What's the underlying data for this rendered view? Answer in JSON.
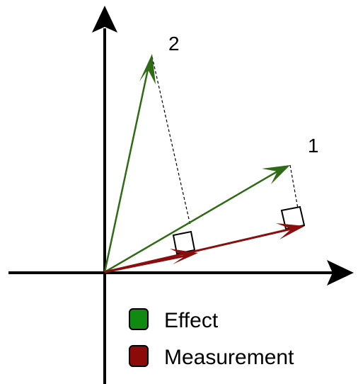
{
  "colors": {
    "effect": "#2e6b14",
    "measurement": "#8b0e0e",
    "axis": "#000000",
    "effect_swatch": "#118a11",
    "measurement_swatch": "#8c0a0a"
  },
  "vector_labels": {
    "one": "1",
    "two": "2"
  },
  "legend": {
    "effect_label": "Effect",
    "measurement_label": "Measurement"
  }
}
